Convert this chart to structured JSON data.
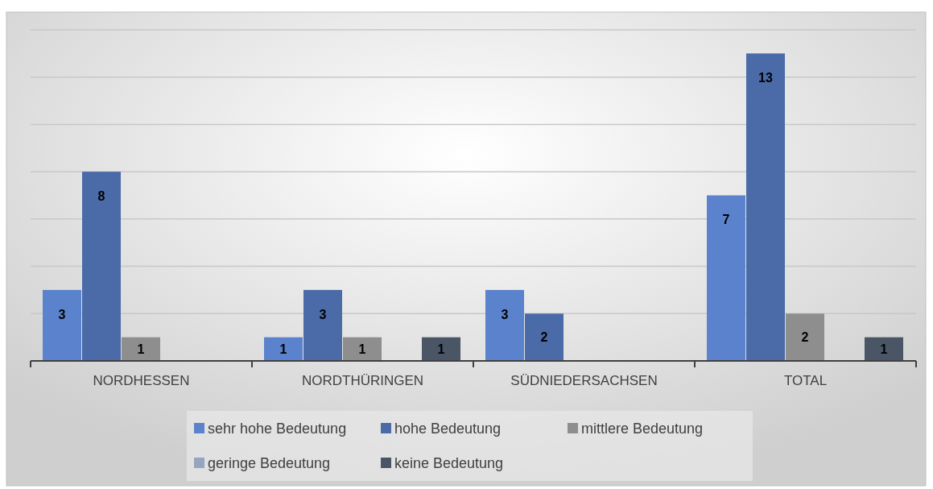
{
  "chart_data": {
    "type": "bar",
    "categories": [
      "NORDHESSEN",
      "NORDTHÜRINGEN",
      "SÜDNIEDERSACHSEN",
      "TOTAL"
    ],
    "series": [
      {
        "name": "sehr hohe Bedeutung",
        "color": "#5b82cc",
        "values": [
          3,
          1,
          3,
          7
        ]
      },
      {
        "name": "hohe Bedeutung",
        "color": "#4a6ba8",
        "values": [
          8,
          3,
          2,
          13
        ]
      },
      {
        "name": "mittlere Bedeutung",
        "color": "#8e8e8e",
        "values": [
          1,
          1,
          null,
          2
        ]
      },
      {
        "name": "geringe Bedeutung",
        "color": "#95a4bf",
        "values": [
          null,
          null,
          null,
          null
        ]
      },
      {
        "name": "keine Bedeutung",
        "color": "#4a5566",
        "values": [
          null,
          1,
          null,
          1
        ]
      }
    ],
    "ylim": [
      0,
      14
    ],
    "yticks": [
      {
        "value": 0,
        "label": null
      },
      {
        "value": 2,
        "label": null
      },
      {
        "value": 4,
        "label": null
      },
      {
        "value": 6,
        "label": null
      },
      {
        "value": 8,
        "label": null
      },
      {
        "value": 10,
        "label": null
      },
      {
        "value": 12,
        "label": null
      },
      {
        "value": 14,
        "label": null
      }
    ],
    "tick_labels": "x",
    "grid": "y",
    "legend": "bottom",
    "data_labels": true
  }
}
